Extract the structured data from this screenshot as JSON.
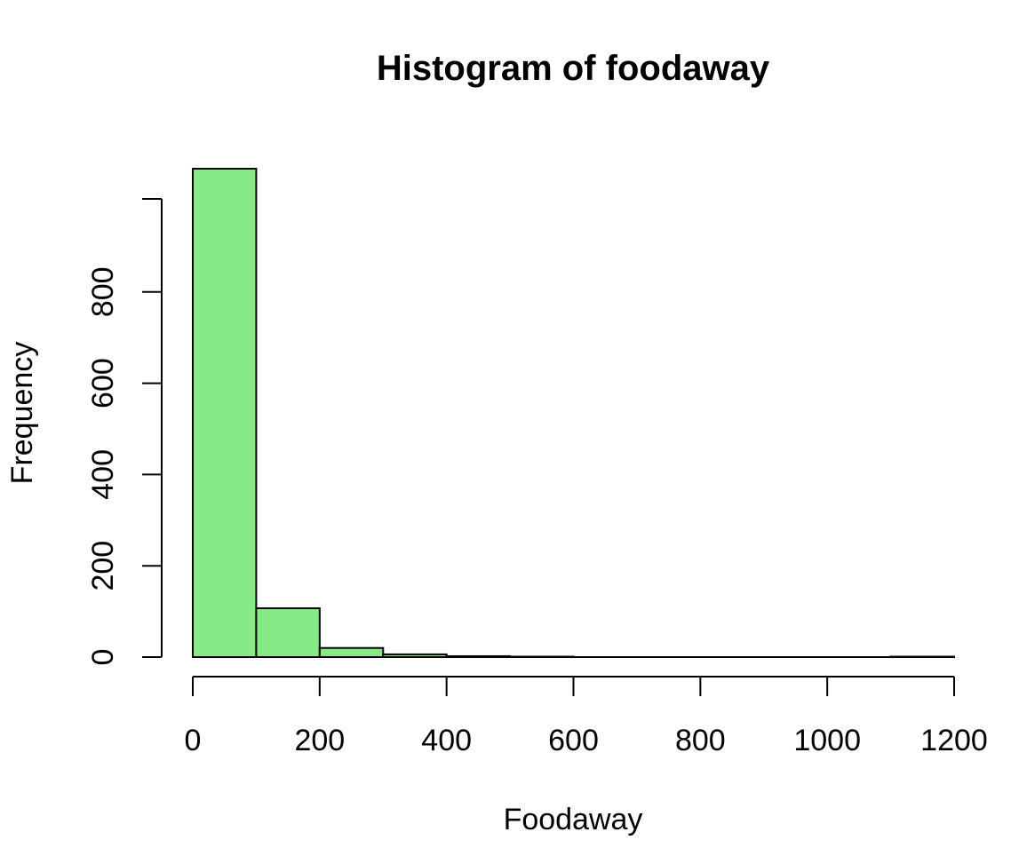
{
  "chart_data": {
    "type": "bar",
    "subtype": "histogram",
    "title": "Histogram of foodaway",
    "xlabel": "Foodaway",
    "ylabel": "Frequency",
    "bin_edges": [
      0,
      100,
      200,
      300,
      400,
      500,
      600,
      700,
      800,
      900,
      1000,
      1100,
      1200
    ],
    "values": [
      1070,
      107,
      20,
      6,
      2,
      1,
      0,
      0,
      0,
      0,
      0,
      1
    ],
    "xlim": [
      0,
      1200
    ],
    "ylim": [
      0,
      1070
    ],
    "xticks": [
      0,
      200,
      400,
      600,
      800,
      1000,
      1200
    ],
    "yticks": [
      0,
      200,
      400,
      600,
      800
    ],
    "bar_color": "#86eb86",
    "edge_color": "#000000",
    "grid": false,
    "legend": "none"
  }
}
